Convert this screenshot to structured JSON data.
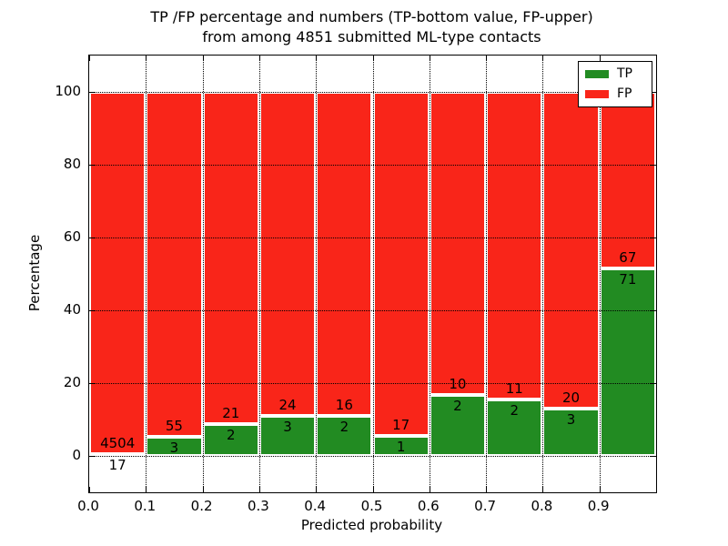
{
  "title": {
    "line1": "TP /FP percentage and numbers (TP-bottom value, FP-upper)",
    "line2": "from among 4851 submitted ML-type contacts"
  },
  "axes": {
    "xlabel": "Predicted probability",
    "ylabel": "Percentage"
  },
  "colors": {
    "tp_green": "#228b22",
    "fp_red": "#f92519",
    "grid": "#000000",
    "background": "#ffffff"
  },
  "chart_data": {
    "type": "bar",
    "stacked": true,
    "normalized_to_percent": true,
    "title": "TP /FP percentage and numbers (TP-bottom value, FP-upper)\nfrom among 4851 submitted ML-type contacts",
    "xlabel": "Predicted probability",
    "ylabel": "Percentage",
    "total_contacts": 4851,
    "bin_edges": [
      0.0,
      0.1,
      0.2,
      0.3,
      0.4,
      0.5,
      0.6,
      0.7,
      0.8,
      0.9,
      1.0
    ],
    "x_ticks": [
      0.0,
      0.1,
      0.2,
      0.3,
      0.4,
      0.5,
      0.6,
      0.7,
      0.8,
      0.9
    ],
    "x_tick_labels": [
      "0.0",
      "0.1",
      "0.2",
      "0.3",
      "0.4",
      "0.5",
      "0.6",
      "0.7",
      "0.8",
      "0.9"
    ],
    "y_ticks": [
      0,
      20,
      40,
      60,
      80,
      100
    ],
    "y_tick_labels": [
      "0",
      "20",
      "40",
      "60",
      "80",
      "100"
    ],
    "xlim": [
      0.0,
      1.0
    ],
    "ylim": [
      -10,
      110
    ],
    "grid": true,
    "grid_style": "dotted",
    "legend_position": "upper right",
    "series": [
      {
        "name": "TP",
        "color": "#228b22",
        "counts": [
          17,
          3,
          2,
          3,
          2,
          1,
          2,
          2,
          3,
          71
        ]
      },
      {
        "name": "FP",
        "color": "#f92519",
        "counts": [
          4504,
          55,
          21,
          24,
          16,
          17,
          10,
          11,
          20,
          67
        ]
      }
    ],
    "tp_percent_of_bin": [
      0.38,
      5.17,
      8.7,
      11.11,
      11.11,
      5.56,
      16.67,
      15.38,
      13.04,
      51.45
    ],
    "fp_percent_of_bin": [
      99.62,
      94.83,
      91.3,
      88.89,
      88.89,
      94.44,
      83.33,
      84.62,
      86.96,
      48.55
    ]
  },
  "legend": {
    "items": [
      {
        "label": "TP",
        "color": "#228b22"
      },
      {
        "label": "FP",
        "color": "#f92519"
      }
    ]
  }
}
